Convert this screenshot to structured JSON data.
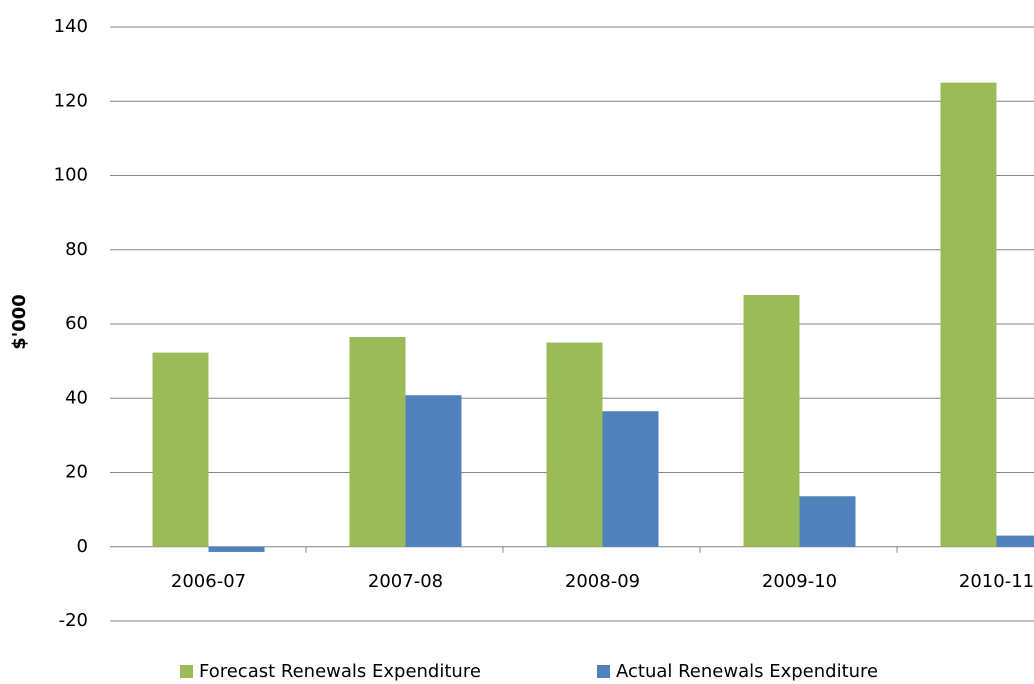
{
  "chart_data": {
    "type": "bar",
    "y_label": "$'000",
    "categories": [
      "2006-07",
      "2007-08",
      "2008-09",
      "2009-10",
      "2010-11"
    ],
    "series": [
      {
        "name": "Forecast Renewals Expenditure",
        "color": "#9bbb59",
        "values": [
          52.3,
          56.5,
          55,
          67.8,
          125
        ]
      },
      {
        "name": "Actual Renewals Expenditure",
        "color": "#4f81bd",
        "values": [
          -1.4,
          40.8,
          36.5,
          13.6,
          3
        ]
      }
    ],
    "ylim": [
      -20,
      140
    ],
    "yticks": [
      -20,
      0,
      20,
      40,
      60,
      80,
      100,
      120,
      140
    ],
    "grid": true,
    "legend": "bottom"
  }
}
